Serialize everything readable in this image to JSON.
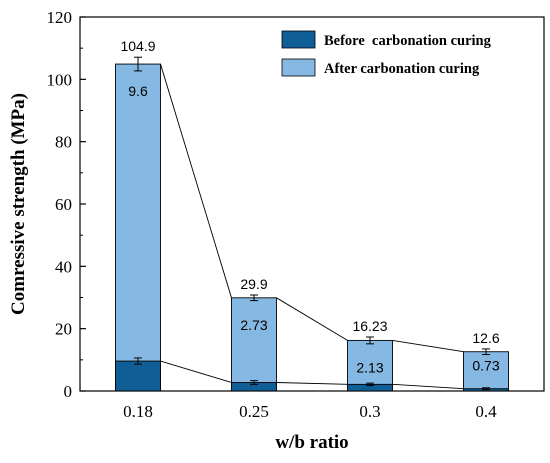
{
  "chart_data": {
    "type": "bar",
    "stacked": true,
    "categories": [
      "0.18",
      "0.25",
      "0.3",
      "0.4"
    ],
    "series": [
      {
        "name": "Before  carbonation curing",
        "values": [
          9.6,
          2.73,
          2.13,
          0.73
        ],
        "errors": [
          1.0,
          0.6,
          0.4,
          0.3
        ],
        "labels": [
          "9.6",
          "2.73",
          "2.13",
          "0.73"
        ],
        "color": "#0f5e96"
      },
      {
        "name": "After carbonation curing",
        "values": [
          104.9,
          29.9,
          16.23,
          12.6
        ],
        "errors": [
          2.2,
          0.9,
          1.1,
          0.9
        ],
        "labels": [
          "104.9",
          "29.9",
          "16.23",
          "12.6"
        ],
        "color": "#85b8e3"
      }
    ],
    "xlabel": "w/b ratio",
    "ylabel": "Comressive strength (MPa)",
    "ylim": [
      0,
      120
    ],
    "yticks": [
      "0",
      "20",
      "40",
      "60",
      "80",
      "100",
      "120"
    ],
    "grid": false,
    "legend_position": "top-right",
    "trend_lines": true
  }
}
